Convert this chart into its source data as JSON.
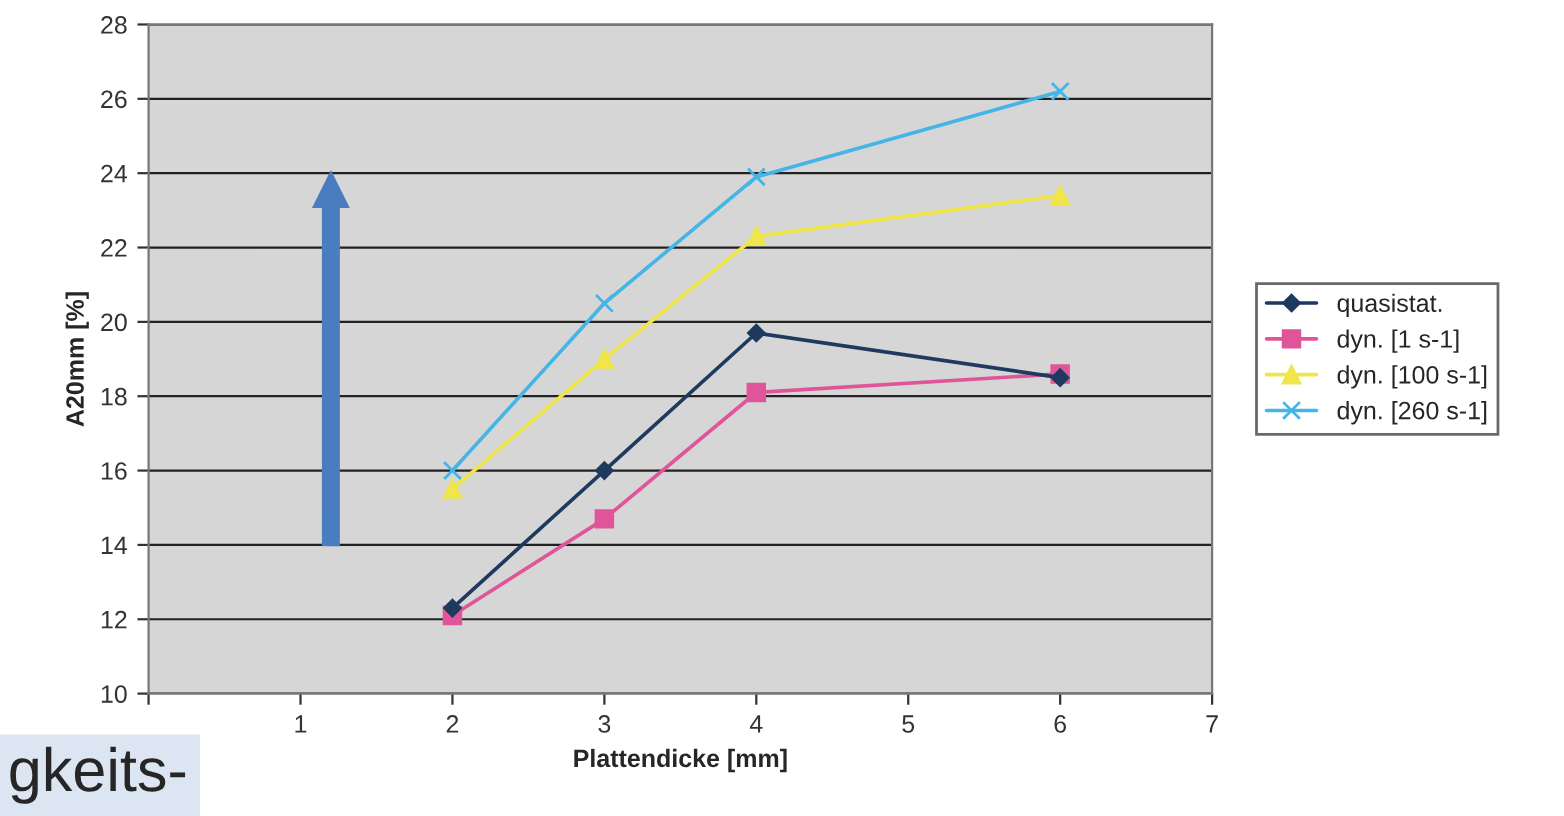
{
  "chart_data": {
    "type": "line",
    "xlabel": "Plattendicke [mm]",
    "ylabel": "A20mm [%]",
    "x": [
      2,
      3,
      4,
      6
    ],
    "series": [
      {
        "name": "quasistat.",
        "color": "#1f3a5f",
        "marker": "diamond",
        "values": [
          12.3,
          16.0,
          19.7,
          18.5
        ]
      },
      {
        "name": "dyn. [1 s-1]",
        "color": "#e0559a",
        "marker": "square",
        "values": [
          12.1,
          14.7,
          18.1,
          18.6
        ]
      },
      {
        "name": "dyn. [100 s-1]",
        "color": "#f0e64a",
        "marker": "triangle",
        "values": [
          15.5,
          19.0,
          22.3,
          23.4
        ]
      },
      {
        "name": "dyn. [260 s-1]",
        "color": "#45b4e6",
        "marker": "cross",
        "values": [
          16.0,
          20.5,
          23.9,
          26.2
        ]
      }
    ],
    "xlim": [
      0,
      7
    ],
    "xticks": [
      {
        "value": 0,
        "label": null
      },
      1,
      2,
      3,
      4,
      5,
      6,
      7
    ],
    "ylim": [
      10,
      28
    ],
    "yticks": [
      10,
      12,
      14,
      16,
      18,
      20,
      22,
      24,
      26,
      28
    ],
    "grid": "y",
    "legend": "right",
    "line_style": "solid",
    "annotations": [
      "gkeits-"
    ]
  }
}
